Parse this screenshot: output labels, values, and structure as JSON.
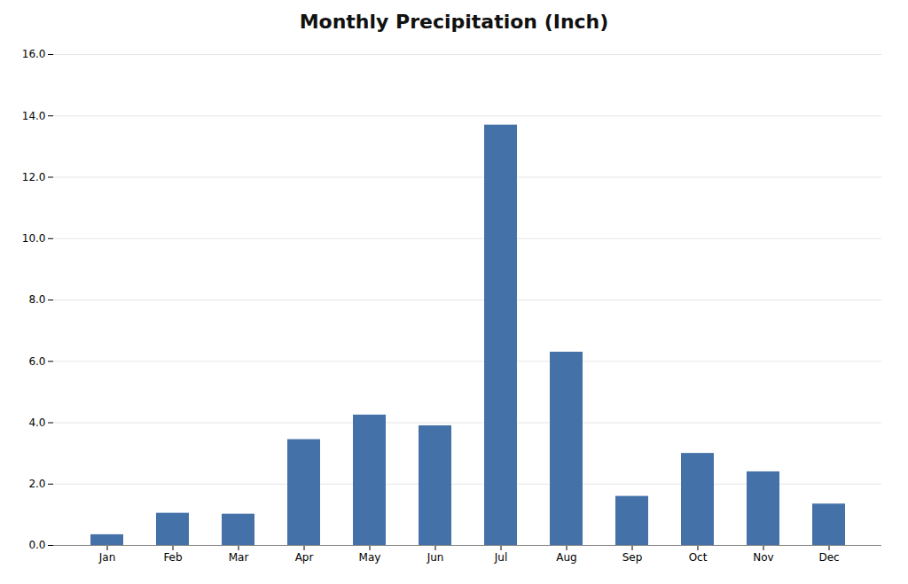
{
  "chart_data": {
    "type": "bar",
    "title": "Monthly Precipitation (Inch)",
    "categories": [
      "Jan",
      "Feb",
      "Mar",
      "Apr",
      "May",
      "Jun",
      "Jul",
      "Aug",
      "Sep",
      "Oct",
      "Nov",
      "Dec"
    ],
    "values": [
      0.35,
      1.05,
      1.02,
      3.45,
      4.25,
      3.9,
      13.7,
      6.3,
      1.6,
      3.0,
      2.4,
      1.35
    ],
    "color": "#4472a8",
    "ylim": [
      0,
      16.0
    ],
    "yticks": [
      {
        "value": 0.0,
        "label": "0.0"
      },
      {
        "value": 2.0,
        "label": "2.0"
      },
      {
        "value": 4.0,
        "label": "4.0"
      },
      {
        "value": 6.0,
        "label": "6.0"
      },
      {
        "value": 8.0,
        "label": "8.0"
      },
      {
        "value": 10.0,
        "label": "10.0"
      },
      {
        "value": 12.0,
        "label": "12.0"
      },
      {
        "value": 14.0,
        "label": "14.0"
      },
      {
        "value": 16.0,
        "label": "16.0"
      }
    ],
    "grid": true
  }
}
